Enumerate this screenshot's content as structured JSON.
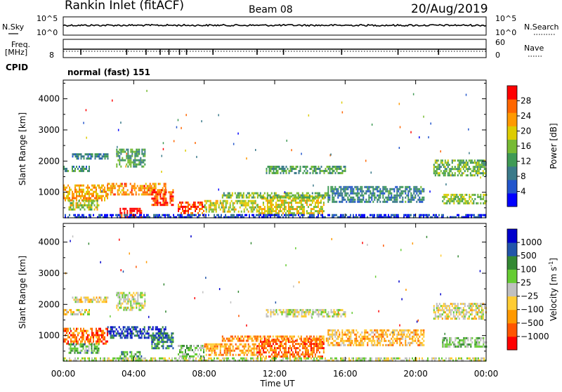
{
  "header": {
    "station": "Rankin Inlet (fitACF)",
    "beam": "Beam 08",
    "date": "20/Aug/2019"
  },
  "panels": {
    "nsky_label": "N.Sky",
    "nsearch_label": "N.Search",
    "noise_ticks_left": [
      "10^5",
      "10^0"
    ],
    "noise_ticks_right": [
      "10^5",
      "10^0"
    ],
    "freq_label_line1": "Freq.",
    "freq_label_line2": "[MHz]",
    "freq_tick": "8",
    "nave_label": "Nave",
    "nave_ticks": [
      "60",
      "0"
    ],
    "cpid_label": "CPID",
    "cpid_text": "normal (fast) 151"
  },
  "chart_data": [
    {
      "type": "heatmap",
      "title": "",
      "xlabel": "Time UT",
      "ylabel": "Slant Range [km]",
      "x_ticks": [
        "00:00",
        "04:00",
        "08:00",
        "12:00",
        "16:00",
        "20:00",
        "00:00"
      ],
      "xlim_hours": [
        0,
        24
      ],
      "y_ticks": [
        1000,
        2000,
        3000,
        4000
      ],
      "ylim": [
        180,
        4600
      ],
      "colorbar": {
        "label": "Power [dB]",
        "ticks": [
          "4",
          "8",
          "12",
          "16",
          "20",
          "24",
          "28"
        ],
        "range": [
          0,
          30
        ],
        "colors": [
          "#0000ff",
          "#2255cc",
          "#3a7a8a",
          "#3f9a55",
          "#77bb33",
          "#ddcc00",
          "#ff9900",
          "#ff6600",
          "#ff0000"
        ]
      },
      "regions": [
        {
          "t0": 0.0,
          "t1": 1.5,
          "r0": 1650,
          "r1": 1850,
          "level": 0.35
        },
        {
          "t0": 0.5,
          "t1": 2.5,
          "r0": 2050,
          "r1": 2250,
          "level": 0.3
        },
        {
          "t0": 3.0,
          "t1": 4.6,
          "r0": 1800,
          "r1": 2400,
          "level": 0.4
        },
        {
          "t0": 0.0,
          "t1": 2.5,
          "r0": 750,
          "r1": 1250,
          "level": 0.7
        },
        {
          "t0": 2.5,
          "t1": 5.8,
          "r0": 900,
          "r1": 1300,
          "level": 0.75
        },
        {
          "t0": 0.3,
          "t1": 2.0,
          "r0": 450,
          "r1": 750,
          "level": 0.55
        },
        {
          "t0": 3.2,
          "t1": 4.4,
          "r0": 220,
          "r1": 500,
          "level": 0.95
        },
        {
          "t0": 5.0,
          "t1": 6.2,
          "r0": 600,
          "r1": 1100,
          "level": 0.85
        },
        {
          "t0": 6.5,
          "t1": 8.0,
          "r0": 300,
          "r1": 700,
          "level": 0.85
        },
        {
          "t0": 8.0,
          "t1": 11.0,
          "r0": 350,
          "r1": 750,
          "level": 0.55
        },
        {
          "t0": 11.0,
          "t1": 14.8,
          "r0": 350,
          "r1": 900,
          "level": 0.6
        },
        {
          "t0": 9.0,
          "t1": 15.0,
          "r0": 800,
          "r1": 1000,
          "level": 0.45
        },
        {
          "t0": 11.5,
          "t1": 16.0,
          "r0": 1600,
          "r1": 1850,
          "level": 0.4
        },
        {
          "t0": 15.0,
          "t1": 20.5,
          "r0": 700,
          "r1": 1200,
          "level": 0.3
        },
        {
          "t0": 21.0,
          "t1": 24.0,
          "r0": 1550,
          "r1": 2050,
          "level": 0.45
        },
        {
          "t0": 21.5,
          "t1": 24.0,
          "r0": 650,
          "r1": 950,
          "level": 0.5
        },
        {
          "t0": 0.0,
          "t1": 24.0,
          "r0": 200,
          "r1": 300,
          "level": 0.15
        }
      ]
    },
    {
      "type": "heatmap",
      "title": "",
      "xlabel": "Time UT",
      "ylabel": "Slant Range [km]",
      "x_ticks": [
        "00:00",
        "04:00",
        "08:00",
        "12:00",
        "16:00",
        "20:00",
        "00:00"
      ],
      "xlim_hours": [
        0,
        24
      ],
      "y_ticks": [
        1000,
        2000,
        3000,
        4000
      ],
      "ylim": [
        180,
        4600
      ],
      "colorbar": {
        "label": "Velocity [m s^-1]",
        "label_main": "Velocity",
        "label_unit": "[m s",
        "label_sup": "-1",
        "label_close": "]",
        "ticks": [
          "1000",
          "500",
          "100",
          "25",
          "−25",
          "−100",
          "−500",
          "−1000"
        ],
        "range": [
          -1000,
          1000
        ],
        "colors": [
          "#ff0000",
          "#ff5500",
          "#ff9900",
          "#ffcc33",
          "#c0c0c0",
          "#66cc33",
          "#338833",
          "#2255aa",
          "#0000cc"
        ]
      },
      "regions": [
        {
          "t0": 0.0,
          "t1": 1.5,
          "r0": 1650,
          "r1": 1850,
          "level": 0.45
        },
        {
          "t0": 0.5,
          "t1": 2.5,
          "r0": 2050,
          "r1": 2250,
          "level": 0.45
        },
        {
          "t0": 3.0,
          "t1": 4.6,
          "r0": 1800,
          "r1": 2400,
          "level": 0.5
        },
        {
          "t0": 0.0,
          "t1": 2.5,
          "r0": 750,
          "r1": 1250,
          "level": 0.2
        },
        {
          "t0": 2.5,
          "t1": 5.8,
          "r0": 900,
          "r1": 1300,
          "level": 0.85
        },
        {
          "t0": 0.3,
          "t1": 2.0,
          "r0": 450,
          "r1": 750,
          "level": 0.65
        },
        {
          "t0": 3.2,
          "t1": 4.4,
          "r0": 220,
          "r1": 500,
          "level": 0.7
        },
        {
          "t0": 5.0,
          "t1": 6.2,
          "r0": 600,
          "r1": 1100,
          "level": 0.75
        },
        {
          "t0": 6.5,
          "t1": 8.0,
          "r0": 300,
          "r1": 700,
          "level": 0.6
        },
        {
          "t0": 8.0,
          "t1": 11.0,
          "r0": 350,
          "r1": 750,
          "level": 0.3
        },
        {
          "t0": 11.0,
          "t1": 14.8,
          "r0": 350,
          "r1": 900,
          "level": 0.2
        },
        {
          "t0": 9.0,
          "t1": 15.0,
          "r0": 800,
          "r1": 1000,
          "level": 0.25
        },
        {
          "t0": 11.5,
          "t1": 16.0,
          "r0": 1600,
          "r1": 1850,
          "level": 0.5
        },
        {
          "t0": 15.0,
          "t1": 20.5,
          "r0": 700,
          "r1": 1200,
          "level": 0.35
        },
        {
          "t0": 21.0,
          "t1": 24.0,
          "r0": 1550,
          "r1": 2050,
          "level": 0.45
        },
        {
          "t0": 21.5,
          "t1": 24.0,
          "r0": 650,
          "r1": 950,
          "level": 0.6
        },
        {
          "t0": 0.0,
          "t1": 24.0,
          "r0": 200,
          "r1": 300,
          "level": 0.5
        }
      ]
    }
  ]
}
